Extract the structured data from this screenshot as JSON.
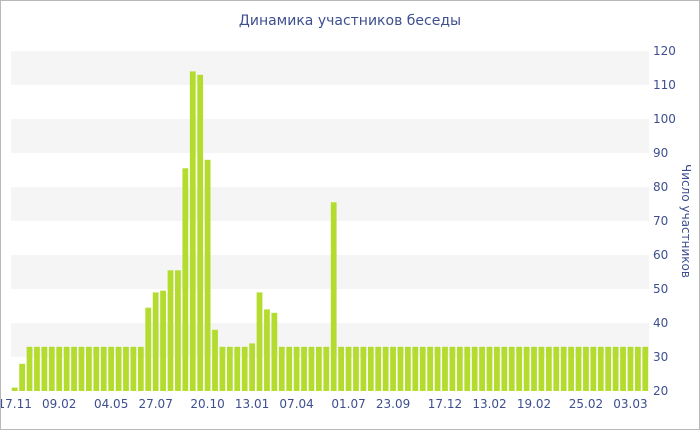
{
  "chart_data": {
    "type": "bar",
    "title": "Динамика участников беседы",
    "xlabel": "",
    "ylabel": "Число участников",
    "ylim": [
      20,
      120
    ],
    "yticks": [
      20,
      30,
      40,
      50,
      60,
      70,
      80,
      90,
      100,
      110,
      120
    ],
    "y_axis_side": "right",
    "grid": "alternating horizontal bands",
    "legend": "none",
    "colors": {
      "bar": "#b4dc2f",
      "band": "#f5f5f5",
      "text": "#3e4f8f"
    },
    "xtick_labels": [
      {
        "index": 0,
        "label": "17.11"
      },
      {
        "index": 6,
        "label": "09.02"
      },
      {
        "index": 13,
        "label": "04.05"
      },
      {
        "index": 19,
        "label": "27.07"
      },
      {
        "index": 26,
        "label": "20.10"
      },
      {
        "index": 32,
        "label": "13.01"
      },
      {
        "index": 38,
        "label": "07.04"
      },
      {
        "index": 45,
        "label": "01.07"
      },
      {
        "index": 51,
        "label": "23.09"
      },
      {
        "index": 58,
        "label": "17.12"
      },
      {
        "index": 64,
        "label": "13.02"
      },
      {
        "index": 70,
        "label": "19.02"
      },
      {
        "index": 77,
        "label": "25.02"
      },
      {
        "index": 83,
        "label": "03.03"
      }
    ],
    "values": [
      21,
      28,
      33,
      33,
      33,
      33,
      33,
      33,
      33,
      33,
      33,
      33,
      33,
      33,
      33,
      33,
      33,
      33,
      44.5,
      49,
      49.5,
      55.5,
      55.5,
      85.5,
      114,
      113,
      88,
      38,
      33,
      33,
      33,
      33,
      34,
      49,
      44,
      43,
      33,
      33,
      33,
      33,
      33,
      33,
      33,
      75.5,
      33,
      33,
      33,
      33,
      33,
      33,
      33,
      33,
      33,
      33,
      33,
      33,
      33,
      33,
      33,
      33,
      33,
      33,
      33,
      33,
      33,
      33,
      33,
      33,
      33,
      33,
      33,
      33,
      33,
      33,
      33,
      33,
      33,
      33,
      33,
      33,
      33,
      33,
      33,
      33,
      33,
      33
    ]
  }
}
